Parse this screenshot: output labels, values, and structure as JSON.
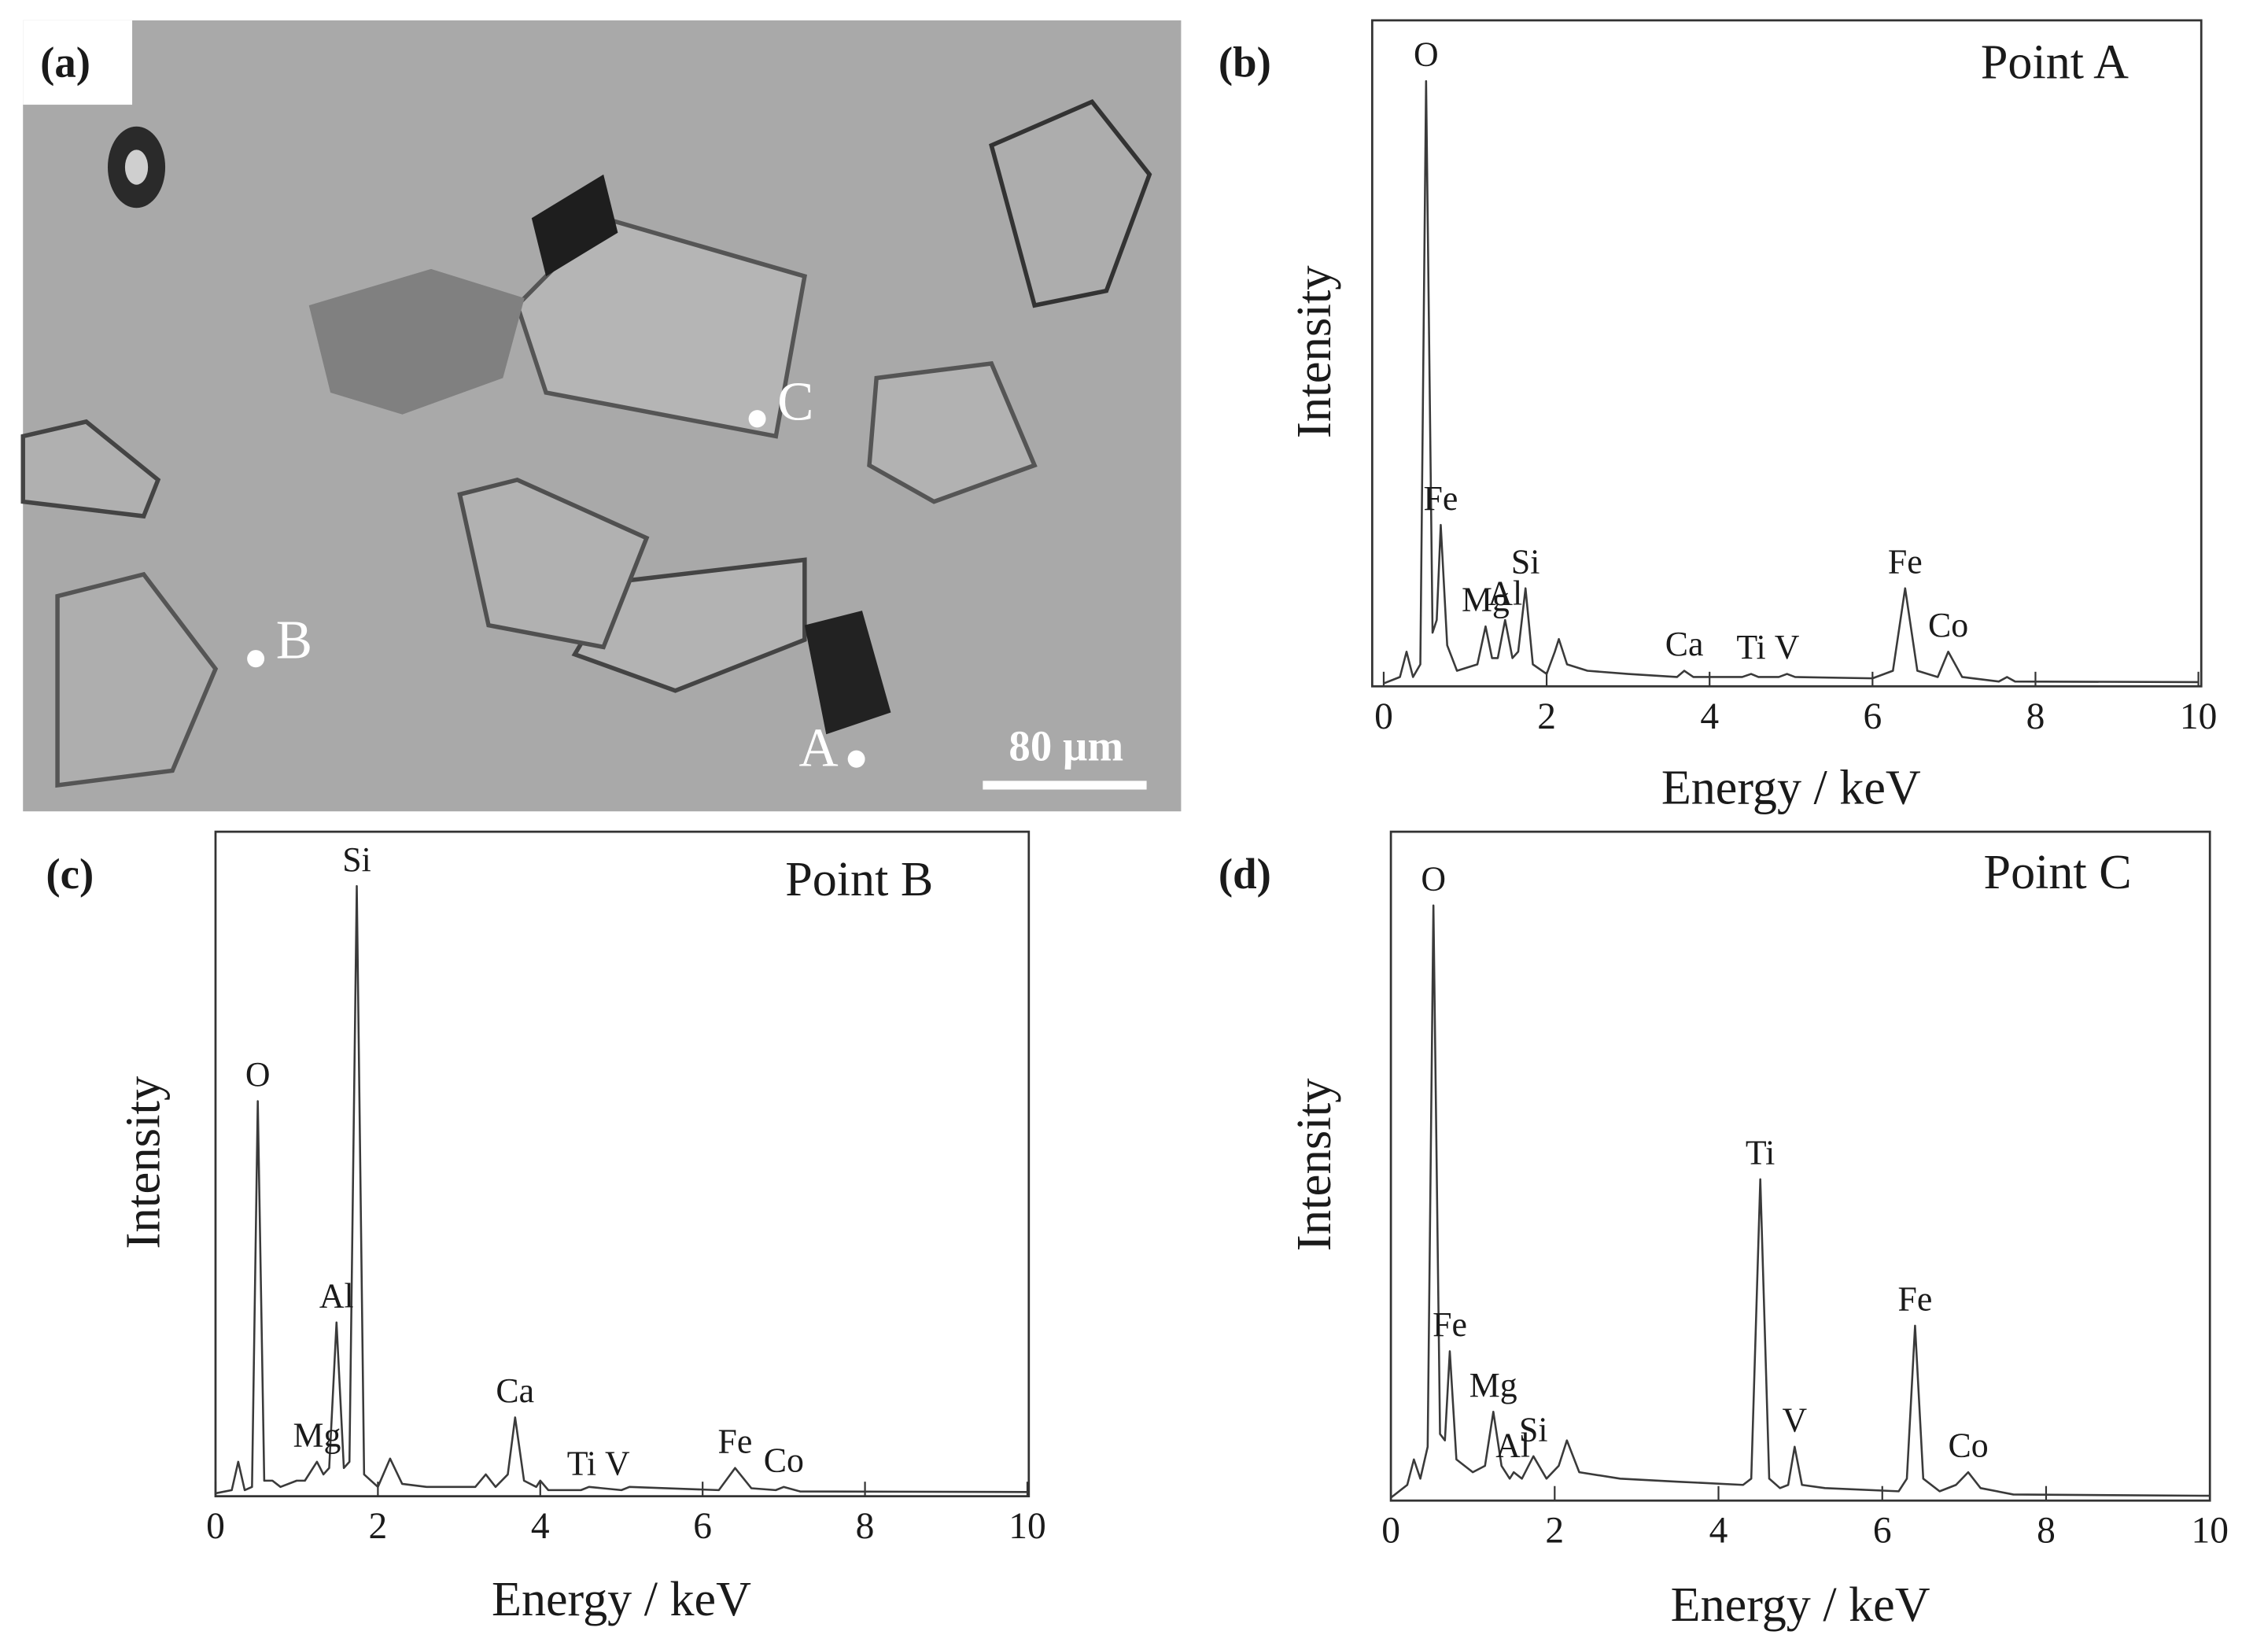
{
  "image": {
    "label": "(a)",
    "points": [
      "A",
      "B",
      "C"
    ],
    "scale_bar": "80 µm"
  },
  "chart_data": [
    {
      "type": "line",
      "panel_label": "(b)",
      "title": "Point A",
      "x_label": "Energy / keV",
      "y_label": "Intensity",
      "xlim": [
        0,
        10
      ],
      "xticks": [
        0,
        2,
        4,
        6,
        8,
        10
      ],
      "ylim": [
        0,
        100
      ],
      "color": "#3a3a3a",
      "x": [
        0,
        0.2,
        0.28,
        0.36,
        0.45,
        0.52,
        0.6,
        0.65,
        0.7,
        0.78,
        0.9,
        1.15,
        1.25,
        1.33,
        1.4,
        1.49,
        1.58,
        1.65,
        1.74,
        1.83,
        2.0,
        2.1,
        2.15,
        2.25,
        2.5,
        3.0,
        3.6,
        3.69,
        3.8,
        4.4,
        4.51,
        4.6,
        4.85,
        4.95,
        5.05,
        6.0,
        6.25,
        6.4,
        6.55,
        6.8,
        6.93,
        7.1,
        7.55,
        7.65,
        7.75,
        10
      ],
      "values": [
        0,
        1,
        5,
        1,
        3,
        95,
        8,
        10,
        25,
        6,
        2,
        3,
        9,
        4,
        4,
        10,
        4,
        5,
        15,
        3,
        1.5,
        5,
        7,
        3,
        2,
        1.5,
        1,
        2,
        1,
        1,
        1.5,
        1,
        1,
        1.5,
        1,
        0.8,
        2,
        15,
        2,
        1,
        5,
        1,
        0.3,
        1,
        0.3,
        0.2
      ],
      "annotations": [
        {
          "text": "O",
          "x": 0.52
        },
        {
          "text": "Fe",
          "x": 0.7
        },
        {
          "text": "Mg",
          "x": 1.25
        },
        {
          "text": "Al",
          "x": 1.49
        },
        {
          "text": "Si",
          "x": 1.74
        },
        {
          "text": "Ca",
          "x": 3.69
        },
        {
          "text": "Ti",
          "x": 4.51
        },
        {
          "text": "V",
          "x": 4.95
        },
        {
          "text": "Fe",
          "x": 6.4
        },
        {
          "text": "Co",
          "x": 6.93
        }
      ]
    },
    {
      "type": "line",
      "panel_label": "(c)",
      "title": "Point B",
      "x_label": "Energy / keV",
      "y_label": "Intensity",
      "xlim": [
        0,
        10
      ],
      "xticks": [
        0,
        2,
        4,
        6,
        8,
        10
      ],
      "ylim": [
        0,
        100
      ],
      "color": "#3a3a3a",
      "x": [
        0,
        0.2,
        0.28,
        0.36,
        0.45,
        0.52,
        0.6,
        0.7,
        0.8,
        1.0,
        1.1,
        1.25,
        1.33,
        1.4,
        1.49,
        1.58,
        1.65,
        1.74,
        1.83,
        2.0,
        2.15,
        2.3,
        2.6,
        3.2,
        3.33,
        3.45,
        3.6,
        3.69,
        3.8,
        3.95,
        4.0,
        4.1,
        4.5,
        4.6,
        5.0,
        5.1,
        6.2,
        6.4,
        6.6,
        6.9,
        7.0,
        7.2,
        10
      ],
      "values": [
        0,
        0.5,
        5,
        0.5,
        1,
        62,
        2,
        2,
        1,
        2,
        2,
        5,
        3,
        4,
        27,
        4,
        5,
        96,
        3,
        1,
        5.5,
        1.5,
        1,
        1,
        3,
        1,
        3,
        12,
        2,
        1,
        2,
        0.5,
        0.5,
        1,
        0.5,
        1,
        0.5,
        4,
        0.8,
        0.5,
        1,
        0.3,
        0.2
      ],
      "annotations": [
        {
          "text": "O",
          "x": 0.52
        },
        {
          "text": "Mg",
          "x": 1.25
        },
        {
          "text": "Al",
          "x": 1.49
        },
        {
          "text": "Si",
          "x": 1.74
        },
        {
          "text": "Ca",
          "x": 3.69
        },
        {
          "text": "Ti",
          "x": 4.51
        },
        {
          "text": "V",
          "x": 4.95
        },
        {
          "text": "Fe",
          "x": 6.4
        },
        {
          "text": "Co",
          "x": 7.0
        }
      ]
    },
    {
      "type": "line",
      "panel_label": "(d)",
      "title": "Point C",
      "x_label": "Energy / keV",
      "y_label": "Intensity",
      "xlim": [
        0,
        10
      ],
      "xticks": [
        0,
        2,
        4,
        6,
        8,
        10
      ],
      "ylim": [
        0,
        100
      ],
      "color": "#3a3a3a",
      "x": [
        0,
        0.2,
        0.28,
        0.36,
        0.45,
        0.52,
        0.6,
        0.66,
        0.72,
        0.8,
        1.0,
        1.15,
        1.25,
        1.35,
        1.45,
        1.5,
        1.6,
        1.74,
        1.9,
        2.05,
        2.15,
        2.3,
        2.8,
        3.5,
        4.3,
        4.4,
        4.51,
        4.62,
        4.75,
        4.85,
        4.93,
        5.02,
        5.3,
        6.2,
        6.3,
        6.4,
        6.5,
        6.7,
        6.9,
        7.05,
        7.2,
        7.6,
        10
      ],
      "values": [
        0,
        2,
        6,
        3,
        8,
        93,
        10,
        9,
        23,
        6,
        4,
        5,
        13.5,
        5,
        3,
        4,
        3,
        6.5,
        3,
        5,
        9,
        4,
        3,
        2.5,
        2,
        3,
        50,
        3,
        1.5,
        2,
        8,
        2,
        1.5,
        1,
        3,
        27,
        3,
        1,
        2,
        4,
        1.5,
        0.5,
        0.3
      ],
      "annotations": [
        {
          "text": "O",
          "x": 0.52
        },
        {
          "text": "Fe",
          "x": 0.72
        },
        {
          "text": "Mg",
          "x": 1.25
        },
        {
          "text": "Al",
          "x": 1.49
        },
        {
          "text": "Si",
          "x": 1.74
        },
        {
          "text": "Ti",
          "x": 4.51
        },
        {
          "text": "V",
          "x": 4.93
        },
        {
          "text": "Fe",
          "x": 6.4
        },
        {
          "text": "Co",
          "x": 7.05
        }
      ]
    }
  ]
}
